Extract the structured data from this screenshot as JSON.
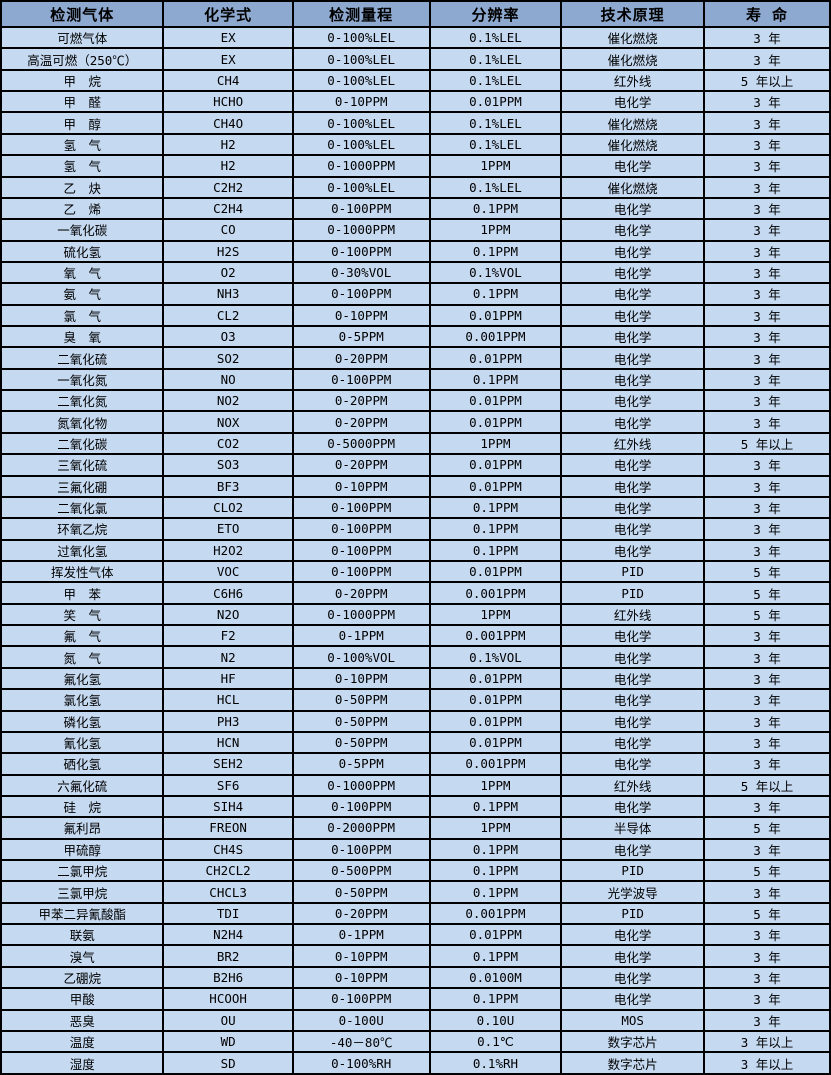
{
  "colors": {
    "header_bg": "#8EA9CF",
    "cell_bg": "#C5D9F1",
    "border": "#000000",
    "text": "#000000"
  },
  "table": {
    "columns": [
      {
        "key": "gas",
        "label": "检测气体"
      },
      {
        "key": "formula",
        "label": "化学式"
      },
      {
        "key": "range",
        "label": "检测量程"
      },
      {
        "key": "resolution",
        "label": "分辨率"
      },
      {
        "key": "principle",
        "label": "技术原理"
      },
      {
        "key": "life",
        "label": "寿 命"
      }
    ],
    "rows": [
      [
        "可燃气体",
        "EX",
        "0-100%LEL",
        "0.1%LEL",
        "催化燃烧",
        "3 年"
      ],
      [
        "高温可燃（250℃）",
        "EX",
        "0-100%LEL",
        "0.1%LEL",
        "催化燃烧",
        "3 年"
      ],
      [
        "甲　烷",
        "CH4",
        "0-100%LEL",
        "0.1%LEL",
        "红外线",
        "5 年以上"
      ],
      [
        "甲　醛",
        "HCHO",
        "0-10PPM",
        "0.01PPM",
        "电化学",
        "3 年"
      ],
      [
        "甲　醇",
        "CH4O",
        "0-100%LEL",
        "0.1%LEL",
        "催化燃烧",
        "3 年"
      ],
      [
        "氢　气",
        "H2",
        "0-100%LEL",
        "0.1%LEL",
        "催化燃烧",
        "3 年"
      ],
      [
        "氢　气",
        "H2",
        "0-1000PPM",
        "1PPM",
        "电化学",
        "3 年"
      ],
      [
        "乙　炔",
        "C2H2",
        "0-100%LEL",
        "0.1%LEL",
        "催化燃烧",
        "3 年"
      ],
      [
        "乙　烯",
        "C2H4",
        "0-100PPM",
        "0.1PPM",
        "电化学",
        "3 年"
      ],
      [
        "一氧化碳",
        "CO",
        "0-1000PPM",
        "1PPM",
        "电化学",
        "3 年"
      ],
      [
        "硫化氢",
        "H2S",
        "0-100PPM",
        "0.1PPM",
        "电化学",
        "3 年"
      ],
      [
        "氧　气",
        "O2",
        "0-30%VOL",
        "0.1%VOL",
        "电化学",
        "3 年"
      ],
      [
        "氨　气",
        "NH3",
        "0-100PPM",
        "0.1PPM",
        "电化学",
        "3 年"
      ],
      [
        "氯　气",
        "CL2",
        "0-10PPM",
        "0.01PPM",
        "电化学",
        "3 年"
      ],
      [
        "臭　氧",
        "O3",
        "0-5PPM",
        "0.001PPM",
        "电化学",
        "3 年"
      ],
      [
        "二氧化硫",
        "SO2",
        "0-20PPM",
        "0.01PPM",
        "电化学",
        "3 年"
      ],
      [
        "一氧化氮",
        "NO",
        "0-100PPM",
        "0.1PPM",
        "电化学",
        "3 年"
      ],
      [
        "二氧化氮",
        "NO2",
        "0-20PPM",
        "0.01PPM",
        "电化学",
        "3 年"
      ],
      [
        "氮氧化物",
        "NOX",
        "0-20PPM",
        "0.01PPM",
        "电化学",
        "3 年"
      ],
      [
        "二氧化碳",
        "CO2",
        "0-5000PPM",
        "1PPM",
        "红外线",
        "5 年以上"
      ],
      [
        "三氧化硫",
        "SO3",
        "0-20PPM",
        "0.01PPM",
        "电化学",
        "3 年"
      ],
      [
        "三氟化硼",
        "BF3",
        "0-10PPM",
        "0.01PPM",
        "电化学",
        "3 年"
      ],
      [
        "二氧化氯",
        "CLO2",
        "0-100PPM",
        "0.1PPM",
        "电化学",
        "3 年"
      ],
      [
        "环氧乙烷",
        "ETO",
        "0-100PPM",
        "0.1PPM",
        "电化学",
        "3 年"
      ],
      [
        "过氧化氢",
        "H2O2",
        "0-100PPM",
        "0.1PPM",
        "电化学",
        "3 年"
      ],
      [
        "挥发性气体",
        "VOC",
        "0-100PPM",
        "0.01PPM",
        "PID",
        "5 年"
      ],
      [
        "甲　苯",
        "C6H6",
        "0-20PPM",
        "0.001PPM",
        "PID",
        "5 年"
      ],
      [
        "笑　气",
        "N2O",
        "0-1000PPM",
        "1PPM",
        "红外线",
        "5 年"
      ],
      [
        "氟　气",
        "F2",
        "0-1PPM",
        "0.001PPM",
        "电化学",
        "3 年"
      ],
      [
        "氮　气",
        "N2",
        "0-100%VOL",
        "0.1%VOL",
        "电化学",
        "3 年"
      ],
      [
        "氟化氢",
        "HF",
        "0-10PPM",
        "0.01PPM",
        "电化学",
        "3 年"
      ],
      [
        "氯化氢",
        "HCL",
        "0-50PPM",
        "0.01PPM",
        "电化学",
        "3 年"
      ],
      [
        "磷化氢",
        "PH3",
        "0-50PPM",
        "0.01PPM",
        "电化学",
        "3 年"
      ],
      [
        "氰化氢",
        "HCN",
        "0-50PPM",
        "0.01PPM",
        "电化学",
        "3 年"
      ],
      [
        "硒化氢",
        "SEH2",
        "0-5PPM",
        "0.001PPM",
        "电化学",
        "3 年"
      ],
      [
        "六氟化硫",
        "SF6",
        "0-1000PPM",
        "1PPM",
        "红外线",
        "5 年以上"
      ],
      [
        "硅　烷",
        "SIH4",
        "0-100PPM",
        "0.1PPM",
        "电化学",
        "3 年"
      ],
      [
        "氟利昂",
        "FREON",
        "0-2000PPM",
        "1PPM",
        "半导体",
        "5 年"
      ],
      [
        "甲硫醇",
        "CH4S",
        "0-100PPM",
        "0.1PPM",
        "电化学",
        "3 年"
      ],
      [
        "二氯甲烷",
        "CH2CL2",
        "0-500PPM",
        "0.1PPM",
        "PID",
        "5 年"
      ],
      [
        "三氯甲烷",
        "CHCL3",
        "0-50PPM",
        "0.1PPM",
        "光学波导",
        "3 年"
      ],
      [
        "甲苯二异氰酸酯",
        "TDI",
        "0-20PPM",
        "0.001PPM",
        "PID",
        "5 年"
      ],
      [
        "联氨",
        "N2H4",
        "0-1PPM",
        "0.01PPM",
        "电化学",
        "3 年"
      ],
      [
        "溴气",
        "BR2",
        "0-10PPM",
        "0.1PPM",
        "电化学",
        "3 年"
      ],
      [
        "乙硼烷",
        "B2H6",
        "0-10PPM",
        "0.0100M",
        "电化学",
        "3 年"
      ],
      [
        "甲酸",
        "HCOOH",
        "0-100PPM",
        "0.1PPM",
        "电化学",
        "3 年"
      ],
      [
        "恶臭",
        "OU",
        "0-100U",
        "0.10U",
        "MOS",
        "3 年"
      ],
      [
        "温度",
        "WD",
        "-40－80℃",
        "0.1℃",
        "数字芯片",
        "3 年以上"
      ],
      [
        "湿度",
        "SD",
        "0-100%RH",
        "0.1%RH",
        "数字芯片",
        "3 年以上"
      ]
    ]
  }
}
